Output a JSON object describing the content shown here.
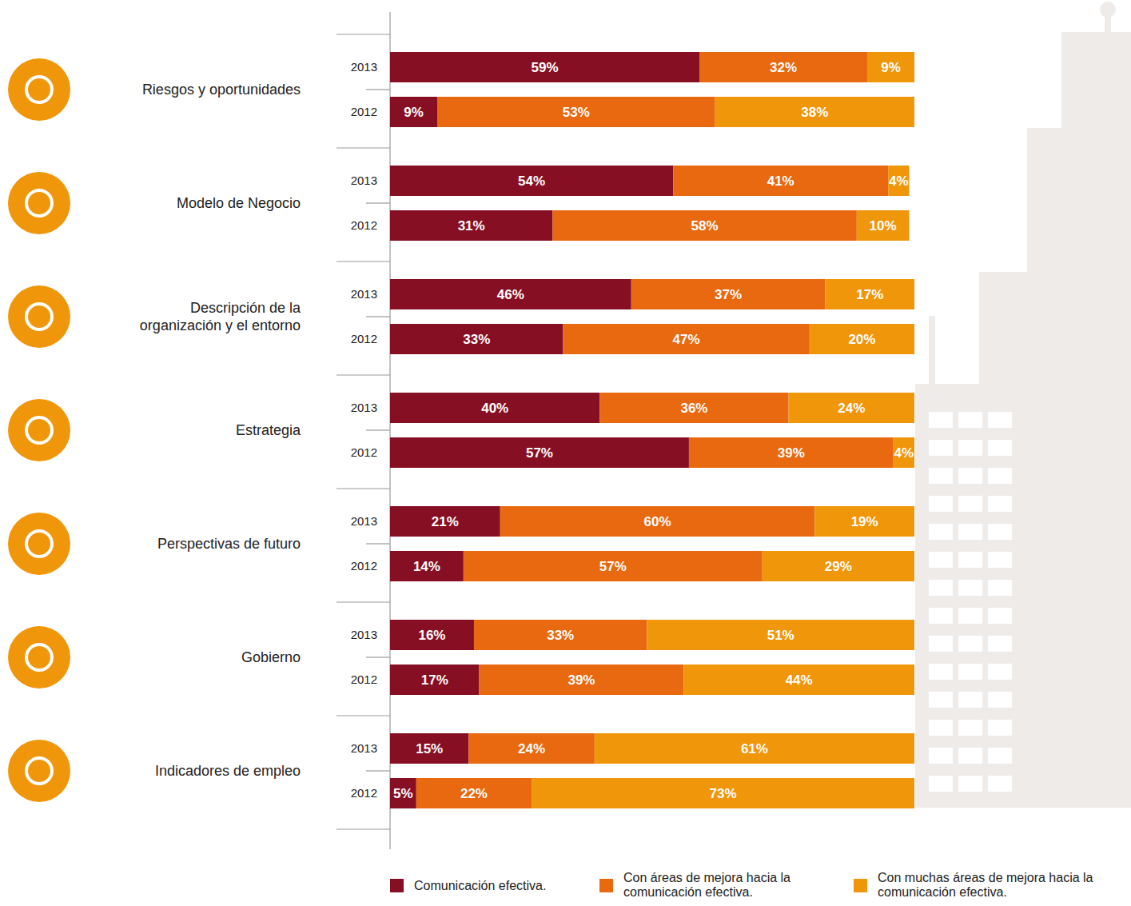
{
  "chart_data": {
    "type": "bar",
    "orientation": "horizontal",
    "stacked": true,
    "data_labels": true,
    "tick_labels": "y",
    "legend": "bottom",
    "xlim": [
      0,
      100
    ],
    "groups": [
      "Riesgos y oportunidades",
      "Modelo de Negocio",
      "Descripción de la organización y el entorno",
      "Estrategia",
      "Perspectivas de futuro",
      "Gobierno",
      "Indicadores de empleo"
    ],
    "categories": [
      "2013",
      "2012",
      "2013",
      "2012",
      "2013",
      "2012",
      "2013",
      "2012",
      "2013",
      "2012",
      "2013",
      "2012",
      "2013",
      "2012"
    ],
    "series": [
      {
        "name": "Comunicación efectiva.",
        "color": "#870f24",
        "values": [
          59,
          9,
          54,
          31,
          46,
          33,
          40,
          57,
          21,
          14,
          16,
          17,
          15,
          5
        ],
        "value_labels": [
          "59%",
          "9%",
          "54%",
          "31%",
          "46%",
          "33%",
          "40%",
          "57%",
          "21%",
          "14%",
          "16%",
          "17%",
          "15%",
          "5%"
        ]
      },
      {
        "name": "Con áreas de mejora hacia la comunicación efectiva.",
        "color": "#e8690f",
        "values": [
          32,
          53,
          41,
          58,
          37,
          47,
          36,
          39,
          60,
          57,
          33,
          39,
          24,
          22
        ],
        "value_labels": [
          "32%",
          "53%",
          "41%",
          "58%",
          "37%",
          "47%",
          "36%",
          "39%",
          "60%",
          "57%",
          "33%",
          "39%",
          "24%",
          "22%"
        ]
      },
      {
        "name": "Con muchas áreas de mejora hacia la comunicación efectiva.",
        "color": "#f0960b",
        "values": [
          9,
          38,
          4,
          10,
          17,
          20,
          24,
          4,
          19,
          29,
          51,
          44,
          61,
          73
        ],
        "value_labels": [
          "9%",
          "38%",
          "4%",
          "10%",
          "17%",
          "20%",
          "24%",
          "4%",
          "19%",
          "29%",
          "51%",
          "44%",
          "61%",
          "73%"
        ]
      }
    ]
  }
}
